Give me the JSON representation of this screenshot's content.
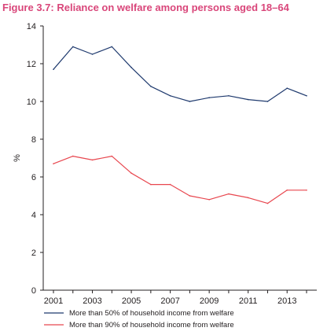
{
  "figure": {
    "title": "Figure 3.7: Reliance on welfare among persons aged 18–64"
  },
  "colors": {
    "title": "#d9467a",
    "series1": "#1f3a6e",
    "series2": "#e8474f",
    "axis": "#231f20"
  },
  "chart_data": {
    "type": "line",
    "title": "Figure 3.7: Reliance on welfare among persons aged 18–64",
    "xlabel": "",
    "ylabel": "%",
    "xlim": [
      2001,
      2014
    ],
    "ylim": [
      0,
      14
    ],
    "x": [
      2001,
      2002,
      2003,
      2004,
      2005,
      2006,
      2007,
      2008,
      2009,
      2010,
      2011,
      2012,
      2013,
      2014
    ],
    "x_ticks": [
      "2001",
      "2003",
      "2005",
      "2007",
      "2009",
      "2011",
      "2013"
    ],
    "y_ticks": [
      "0",
      "2",
      "4",
      "6",
      "8",
      "10",
      "12",
      "14"
    ],
    "y_tick_values": [
      0,
      2,
      4,
      6,
      8,
      10,
      12,
      14
    ],
    "x_tick_values": [
      2001,
      2003,
      2005,
      2007,
      2009,
      2011,
      2013
    ],
    "grid": false,
    "legend_position": "bottom",
    "series": [
      {
        "name": "More than 50% of household income from welfare",
        "color": "#1f3a6e",
        "values": [
          11.7,
          12.9,
          12.5,
          12.9,
          11.8,
          10.8,
          10.3,
          10.0,
          10.2,
          10.3,
          10.1,
          10.0,
          10.7,
          10.3
        ]
      },
      {
        "name": "More than 90% of household income from welfare",
        "color": "#e8474f",
        "values": [
          6.7,
          7.1,
          6.9,
          7.1,
          6.2,
          5.6,
          5.6,
          5.0,
          4.8,
          5.1,
          4.9,
          4.6,
          5.3,
          5.3
        ]
      }
    ]
  }
}
